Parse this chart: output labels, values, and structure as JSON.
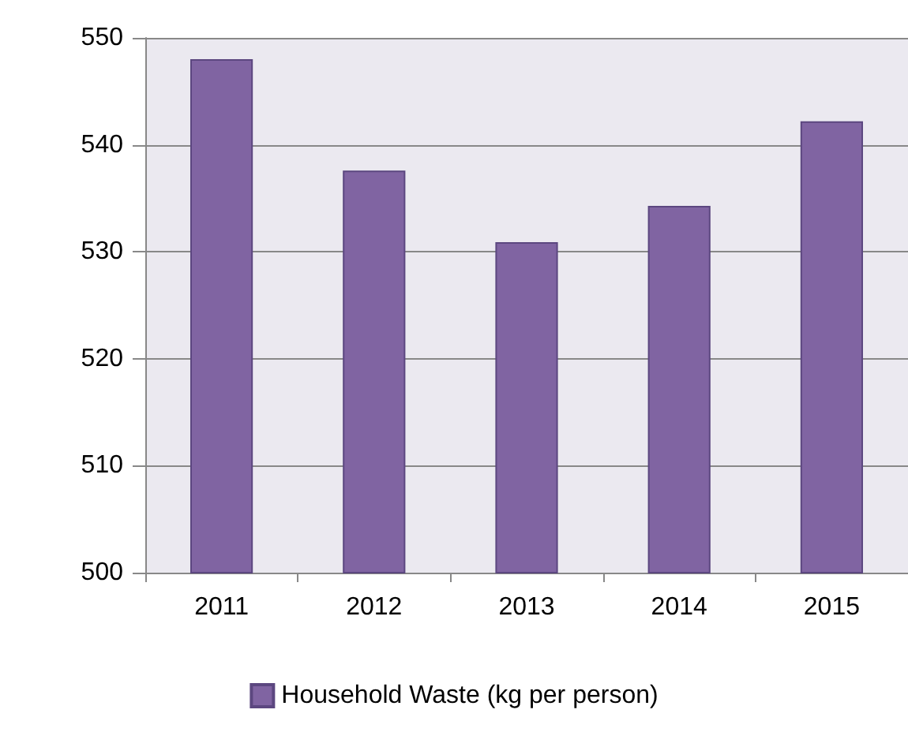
{
  "chart_data": {
    "type": "bar",
    "categories": [
      "2011",
      "2012",
      "2013",
      "2014",
      "2015"
    ],
    "series": [
      {
        "name": "Household Waste (kg per person)",
        "color": "#8064a2",
        "values": [
          548,
          537.6,
          530.9,
          534.3,
          542.2
        ]
      }
    ],
    "ylim": [
      500,
      550
    ],
    "yticks": [
      500,
      510,
      520,
      530,
      540,
      550
    ],
    "grid": "y",
    "legend": "bottom"
  }
}
